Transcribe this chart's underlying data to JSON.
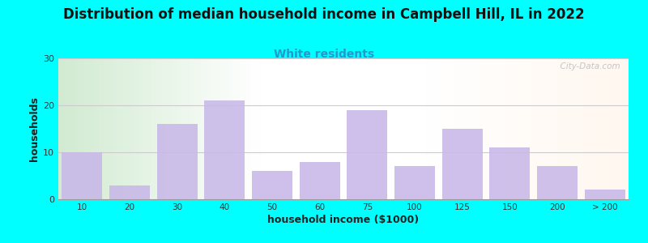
{
  "title": "Distribution of median household income in Campbell Hill, IL in 2022",
  "subtitle": "White residents",
  "xlabel": "household income ($1000)",
  "ylabel": "households",
  "title_fontsize": 12,
  "subtitle_fontsize": 10,
  "subtitle_color": "#2299cc",
  "bar_color": "#c8b8e8",
  "background_outer": "#00ffff",
  "background_plot_left": "#d8eeda",
  "background_plot_right": "#f5f0f0",
  "categories": [
    "10",
    "20",
    "30",
    "40",
    "50",
    "60",
    "75",
    "100",
    "125",
    "150",
    "200",
    "> 200"
  ],
  "values": [
    10,
    3,
    16,
    21,
    6,
    8,
    19,
    7,
    15,
    11,
    7,
    2
  ],
  "ylim": [
    0,
    30
  ],
  "yticks": [
    0,
    10,
    20,
    30
  ],
  "watermark": "  City-Data.com"
}
